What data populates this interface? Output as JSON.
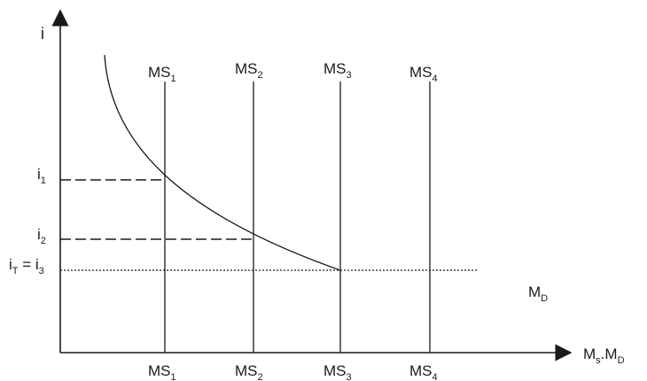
{
  "diagram": {
    "y_axis_label": "i",
    "x_axis_label": {
      "main": "M",
      "sub1": "s",
      "mid": ".M",
      "sub2": "D"
    },
    "demand_curve_label": {
      "main": "M",
      "sub": "D"
    },
    "supply_labels_top": [
      {
        "main": "MS",
        "sub": "1"
      },
      {
        "main": "MS",
        "sub": "2"
      },
      {
        "main": "MS",
        "sub": "3"
      },
      {
        "main": "MS",
        "sub": "4"
      }
    ],
    "supply_labels_bottom": [
      {
        "main": "MS",
        "sub": "1"
      },
      {
        "main": "MS",
        "sub": "2"
      },
      {
        "main": "MS",
        "sub": "3"
      },
      {
        "main": "MS",
        "sub": "4"
      }
    ],
    "rate_labels": {
      "i1": {
        "main": "i",
        "sub": "1"
      },
      "i2": {
        "main": "i",
        "sub": "2"
      },
      "it_i3": {
        "main1": "i",
        "sub1": "T",
        "eq": " = i",
        "sub2": "3"
      }
    },
    "colors": {
      "ink": "#1a1a1a",
      "background": "#ffffff"
    }
  }
}
